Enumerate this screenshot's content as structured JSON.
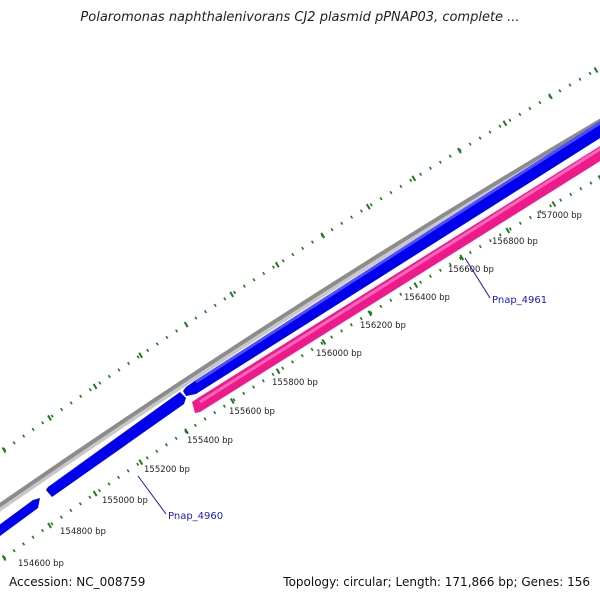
{
  "header": {
    "title": "Polaromonas naphthalenivorans CJ2 plasmid pPNAP03, complete ..."
  },
  "footer": {
    "accession": "Accession: NC_008759",
    "summary": "Topology: circular; Length: 171,866 bp; Genes: 156"
  },
  "colors": {
    "backbone": "#8c8c8c",
    "forward_gene": "#0000ee",
    "reverse_gene": "#ee1a8c",
    "ticks": "#1e7a1e",
    "gene_label": "#1a1acc"
  },
  "position_ticks": [
    {
      "label": "154600 bp"
    },
    {
      "label": "154800 bp"
    },
    {
      "label": "155000 bp"
    },
    {
      "label": "155200 bp"
    },
    {
      "label": "155400 bp"
    },
    {
      "label": "155600 bp"
    },
    {
      "label": "155800 bp"
    },
    {
      "label": "156000 bp"
    },
    {
      "label": "156200 bp"
    },
    {
      "label": "156400 bp"
    },
    {
      "label": "156600 bp"
    },
    {
      "label": "156800 bp"
    },
    {
      "label": "157000 bp"
    }
  ],
  "genes": [
    {
      "label": "Pnap_4960",
      "strand": "forward"
    },
    {
      "label": "Pnap_4961",
      "strand": "reverse"
    }
  ]
}
